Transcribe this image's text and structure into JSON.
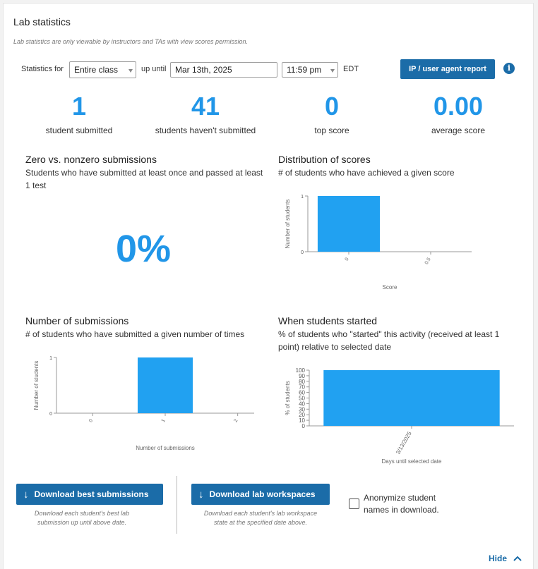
{
  "header": {
    "title": "Lab statistics",
    "note": "Lab statistics are only viewable by instructors and TAs with view scores permission."
  },
  "filters": {
    "statistics_for_label": "Statistics for",
    "scope_value": "Entire class",
    "up_until_label": "up until",
    "date_value": "Mar 13th, 2025",
    "time_value": "11:59 pm",
    "timezone": "EDT",
    "ip_report_button": "IP / user agent report",
    "info_icon": "i"
  },
  "stats": [
    {
      "value": "1",
      "label": "student submitted"
    },
    {
      "value": "41",
      "label": "students haven't submitted"
    },
    {
      "value": "0",
      "label": "top score"
    },
    {
      "value": "0.00",
      "label": "average score"
    }
  ],
  "zero_nonzero": {
    "title": "Zero vs. nonzero submissions",
    "description": "Students who have submitted at least once and passed at least 1 test",
    "percent": "0%"
  },
  "distribution": {
    "title": "Distribution of scores",
    "description": "# of students who have achieved a given score"
  },
  "submissions": {
    "title": "Number of submissions",
    "description": "# of students who have submitted a given number of times"
  },
  "started": {
    "title": "When students started",
    "description": "% of students who \"started\" this activity (received at least 1 point) relative to selected date"
  },
  "chart_data": [
    {
      "type": "bar",
      "categories": [
        "0",
        "0.5"
      ],
      "values": [
        1,
        0
      ],
      "xlabel": "Score",
      "ylabel": "Number of students",
      "ylim": [
        0,
        1
      ],
      "yticks": [
        "0",
        "1"
      ],
      "color": "#21a1f1"
    },
    {
      "type": "bar",
      "categories": [
        "0",
        "1",
        "2"
      ],
      "values": [
        0,
        1,
        0
      ],
      "xlabel": "Number of submissions",
      "ylabel": "Number of students",
      "ylim": [
        0,
        1
      ],
      "yticks": [
        "0",
        "1"
      ],
      "color": "#21a1f1"
    },
    {
      "type": "bar",
      "categories": [
        "3/13/2025"
      ],
      "values": [
        100
      ],
      "xlabel": "Days until selected date",
      "ylabel": "% of students",
      "ylim": [
        0,
        100
      ],
      "yticks": [
        "0",
        "10",
        "20",
        "30",
        "40",
        "50",
        "60",
        "70",
        "80",
        "90",
        "100"
      ],
      "color": "#21a1f1"
    }
  ],
  "downloads": {
    "best_button": "Download best submissions",
    "best_note_1": "Download each student's best lab",
    "best_note_2": "submission up until above date.",
    "workspace_button": "Download lab workspaces",
    "workspace_note_1": "Download each student's lab workspace",
    "workspace_note_2": "state at the specified date above.",
    "anonymize_1": "Anonymize student",
    "anonymize_2": "names in download."
  },
  "footer": {
    "hide_label": "Hide"
  }
}
